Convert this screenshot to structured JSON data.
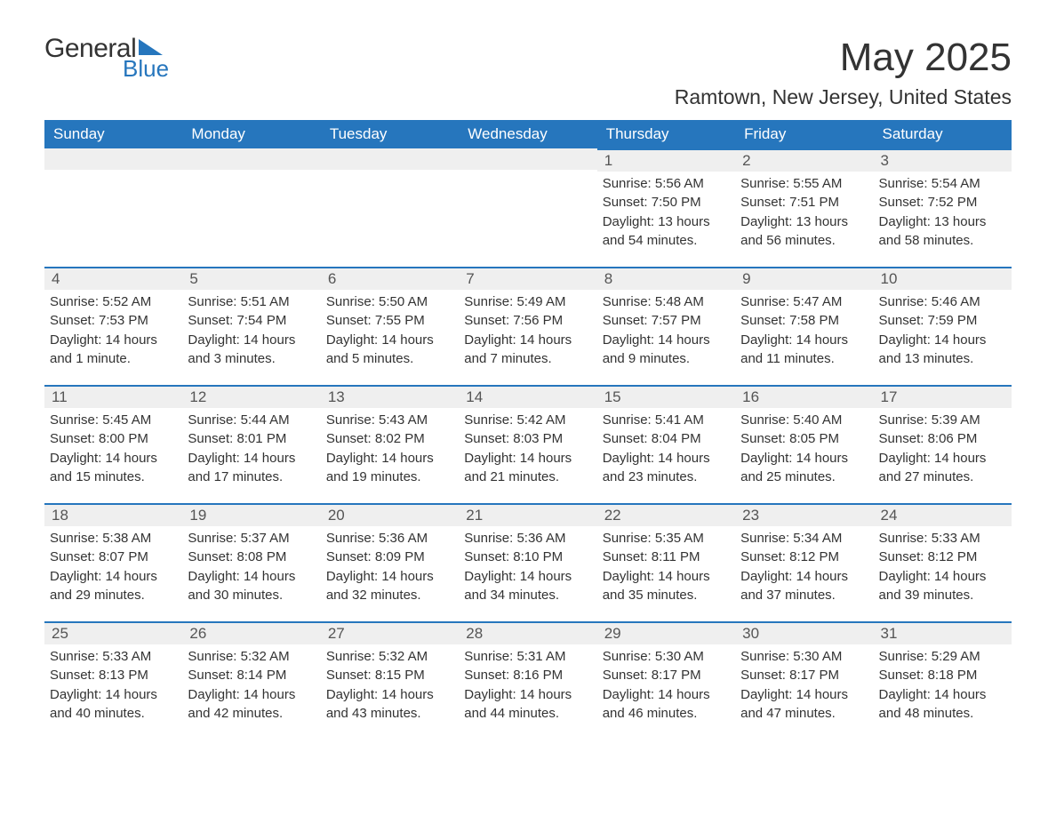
{
  "logo": {
    "word1": "General",
    "word2": "Blue"
  },
  "title": "May 2025",
  "subtitle": "Ramtown, New Jersey, United States",
  "colors": {
    "primary": "#2676bd",
    "daynum_bg": "#efefef",
    "text": "#333333",
    "white": "#ffffff"
  },
  "weekdays": [
    "Sunday",
    "Monday",
    "Tuesday",
    "Wednesday",
    "Thursday",
    "Friday",
    "Saturday"
  ],
  "weeks": [
    [
      null,
      null,
      null,
      null,
      {
        "day": "1",
        "sunrise": "Sunrise: 5:56 AM",
        "sunset": "Sunset: 7:50 PM",
        "dl1": "Daylight: 13 hours",
        "dl2": "and 54 minutes."
      },
      {
        "day": "2",
        "sunrise": "Sunrise: 5:55 AM",
        "sunset": "Sunset: 7:51 PM",
        "dl1": "Daylight: 13 hours",
        "dl2": "and 56 minutes."
      },
      {
        "day": "3",
        "sunrise": "Sunrise: 5:54 AM",
        "sunset": "Sunset: 7:52 PM",
        "dl1": "Daylight: 13 hours",
        "dl2": "and 58 minutes."
      }
    ],
    [
      {
        "day": "4",
        "sunrise": "Sunrise: 5:52 AM",
        "sunset": "Sunset: 7:53 PM",
        "dl1": "Daylight: 14 hours",
        "dl2": "and 1 minute."
      },
      {
        "day": "5",
        "sunrise": "Sunrise: 5:51 AM",
        "sunset": "Sunset: 7:54 PM",
        "dl1": "Daylight: 14 hours",
        "dl2": "and 3 minutes."
      },
      {
        "day": "6",
        "sunrise": "Sunrise: 5:50 AM",
        "sunset": "Sunset: 7:55 PM",
        "dl1": "Daylight: 14 hours",
        "dl2": "and 5 minutes."
      },
      {
        "day": "7",
        "sunrise": "Sunrise: 5:49 AM",
        "sunset": "Sunset: 7:56 PM",
        "dl1": "Daylight: 14 hours",
        "dl2": "and 7 minutes."
      },
      {
        "day": "8",
        "sunrise": "Sunrise: 5:48 AM",
        "sunset": "Sunset: 7:57 PM",
        "dl1": "Daylight: 14 hours",
        "dl2": "and 9 minutes."
      },
      {
        "day": "9",
        "sunrise": "Sunrise: 5:47 AM",
        "sunset": "Sunset: 7:58 PM",
        "dl1": "Daylight: 14 hours",
        "dl2": "and 11 minutes."
      },
      {
        "day": "10",
        "sunrise": "Sunrise: 5:46 AM",
        "sunset": "Sunset: 7:59 PM",
        "dl1": "Daylight: 14 hours",
        "dl2": "and 13 minutes."
      }
    ],
    [
      {
        "day": "11",
        "sunrise": "Sunrise: 5:45 AM",
        "sunset": "Sunset: 8:00 PM",
        "dl1": "Daylight: 14 hours",
        "dl2": "and 15 minutes."
      },
      {
        "day": "12",
        "sunrise": "Sunrise: 5:44 AM",
        "sunset": "Sunset: 8:01 PM",
        "dl1": "Daylight: 14 hours",
        "dl2": "and 17 minutes."
      },
      {
        "day": "13",
        "sunrise": "Sunrise: 5:43 AM",
        "sunset": "Sunset: 8:02 PM",
        "dl1": "Daylight: 14 hours",
        "dl2": "and 19 minutes."
      },
      {
        "day": "14",
        "sunrise": "Sunrise: 5:42 AM",
        "sunset": "Sunset: 8:03 PM",
        "dl1": "Daylight: 14 hours",
        "dl2": "and 21 minutes."
      },
      {
        "day": "15",
        "sunrise": "Sunrise: 5:41 AM",
        "sunset": "Sunset: 8:04 PM",
        "dl1": "Daylight: 14 hours",
        "dl2": "and 23 minutes."
      },
      {
        "day": "16",
        "sunrise": "Sunrise: 5:40 AM",
        "sunset": "Sunset: 8:05 PM",
        "dl1": "Daylight: 14 hours",
        "dl2": "and 25 minutes."
      },
      {
        "day": "17",
        "sunrise": "Sunrise: 5:39 AM",
        "sunset": "Sunset: 8:06 PM",
        "dl1": "Daylight: 14 hours",
        "dl2": "and 27 minutes."
      }
    ],
    [
      {
        "day": "18",
        "sunrise": "Sunrise: 5:38 AM",
        "sunset": "Sunset: 8:07 PM",
        "dl1": "Daylight: 14 hours",
        "dl2": "and 29 minutes."
      },
      {
        "day": "19",
        "sunrise": "Sunrise: 5:37 AM",
        "sunset": "Sunset: 8:08 PM",
        "dl1": "Daylight: 14 hours",
        "dl2": "and 30 minutes."
      },
      {
        "day": "20",
        "sunrise": "Sunrise: 5:36 AM",
        "sunset": "Sunset: 8:09 PM",
        "dl1": "Daylight: 14 hours",
        "dl2": "and 32 minutes."
      },
      {
        "day": "21",
        "sunrise": "Sunrise: 5:36 AM",
        "sunset": "Sunset: 8:10 PM",
        "dl1": "Daylight: 14 hours",
        "dl2": "and 34 minutes."
      },
      {
        "day": "22",
        "sunrise": "Sunrise: 5:35 AM",
        "sunset": "Sunset: 8:11 PM",
        "dl1": "Daylight: 14 hours",
        "dl2": "and 35 minutes."
      },
      {
        "day": "23",
        "sunrise": "Sunrise: 5:34 AM",
        "sunset": "Sunset: 8:12 PM",
        "dl1": "Daylight: 14 hours",
        "dl2": "and 37 minutes."
      },
      {
        "day": "24",
        "sunrise": "Sunrise: 5:33 AM",
        "sunset": "Sunset: 8:12 PM",
        "dl1": "Daylight: 14 hours",
        "dl2": "and 39 minutes."
      }
    ],
    [
      {
        "day": "25",
        "sunrise": "Sunrise: 5:33 AM",
        "sunset": "Sunset: 8:13 PM",
        "dl1": "Daylight: 14 hours",
        "dl2": "and 40 minutes."
      },
      {
        "day": "26",
        "sunrise": "Sunrise: 5:32 AM",
        "sunset": "Sunset: 8:14 PM",
        "dl1": "Daylight: 14 hours",
        "dl2": "and 42 minutes."
      },
      {
        "day": "27",
        "sunrise": "Sunrise: 5:32 AM",
        "sunset": "Sunset: 8:15 PM",
        "dl1": "Daylight: 14 hours",
        "dl2": "and 43 minutes."
      },
      {
        "day": "28",
        "sunrise": "Sunrise: 5:31 AM",
        "sunset": "Sunset: 8:16 PM",
        "dl1": "Daylight: 14 hours",
        "dl2": "and 44 minutes."
      },
      {
        "day": "29",
        "sunrise": "Sunrise: 5:30 AM",
        "sunset": "Sunset: 8:17 PM",
        "dl1": "Daylight: 14 hours",
        "dl2": "and 46 minutes."
      },
      {
        "day": "30",
        "sunrise": "Sunrise: 5:30 AM",
        "sunset": "Sunset: 8:17 PM",
        "dl1": "Daylight: 14 hours",
        "dl2": "and 47 minutes."
      },
      {
        "day": "31",
        "sunrise": "Sunrise: 5:29 AM",
        "sunset": "Sunset: 8:18 PM",
        "dl1": "Daylight: 14 hours",
        "dl2": "and 48 minutes."
      }
    ]
  ]
}
